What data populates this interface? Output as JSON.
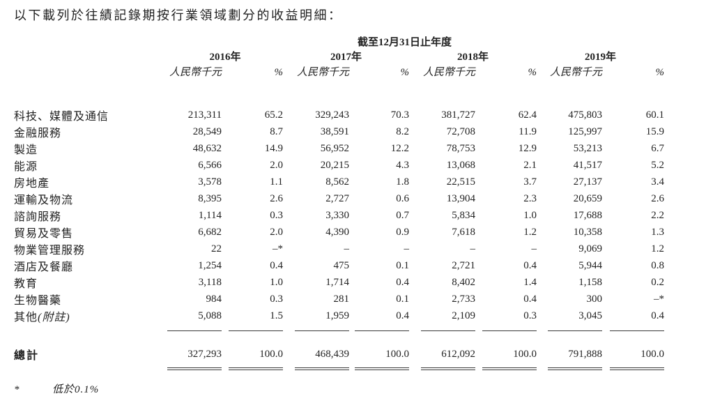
{
  "title": "以下載列於往績記錄期按行業領域劃分的收益明細：",
  "table": {
    "period_header": "截至12月31日止年度",
    "years": [
      "2016年",
      "2017年",
      "2018年",
      "2019年"
    ],
    "amount_header": "人民幣千元",
    "percent_header": "%",
    "rows": [
      {
        "label": "科技、媒體及通信",
        "values": [
          "213,311",
          "65.2",
          "329,243",
          "70.3",
          "381,727",
          "62.4",
          "475,803",
          "60.1"
        ]
      },
      {
        "label": "金融服務",
        "values": [
          "28,549",
          "8.7",
          "38,591",
          "8.2",
          "72,708",
          "11.9",
          "125,997",
          "15.9"
        ]
      },
      {
        "label": "製造",
        "values": [
          "48,632",
          "14.9",
          "56,952",
          "12.2",
          "78,753",
          "12.9",
          "53,213",
          "6.7"
        ]
      },
      {
        "label": "能源",
        "values": [
          "6,566",
          "2.0",
          "20,215",
          "4.3",
          "13,068",
          "2.1",
          "41,517",
          "5.2"
        ]
      },
      {
        "label": "房地產",
        "values": [
          "3,578",
          "1.1",
          "8,562",
          "1.8",
          "22,515",
          "3.7",
          "27,137",
          "3.4"
        ]
      },
      {
        "label": "運輸及物流",
        "values": [
          "8,395",
          "2.6",
          "2,727",
          "0.6",
          "13,904",
          "2.3",
          "20,659",
          "2.6"
        ]
      },
      {
        "label": "諮詢服務",
        "values": [
          "1,114",
          "0.3",
          "3,330",
          "0.7",
          "5,834",
          "1.0",
          "17,688",
          "2.2"
        ]
      },
      {
        "label": "貿易及零售",
        "values": [
          "6,682",
          "2.0",
          "4,390",
          "0.9",
          "7,618",
          "1.2",
          "10,358",
          "1.3"
        ]
      },
      {
        "label": "物業管理服務",
        "values": [
          "22",
          "–*",
          "–",
          "–",
          "–",
          "–",
          "9,069",
          "1.2"
        ]
      },
      {
        "label": "酒店及餐廳",
        "values": [
          "1,254",
          "0.4",
          "475",
          "0.1",
          "2,721",
          "0.4",
          "5,944",
          "0.8"
        ]
      },
      {
        "label": "教育",
        "values": [
          "3,118",
          "1.0",
          "1,714",
          "0.4",
          "8,402",
          "1.4",
          "1,158",
          "0.2"
        ]
      },
      {
        "label": "生物醫藥",
        "values": [
          "984",
          "0.3",
          "281",
          "0.1",
          "2,733",
          "0.4",
          "300",
          "–*"
        ]
      },
      {
        "label": "其他",
        "note": "(附註)",
        "values": [
          "5,088",
          "1.5",
          "1,959",
          "0.4",
          "2,109",
          "0.3",
          "3,045",
          "0.4"
        ]
      }
    ],
    "total": {
      "label": "總計",
      "values": [
        "327,293",
        "100.0",
        "468,439",
        "100.0",
        "612,092",
        "100.0",
        "791,888",
        "100.0"
      ]
    }
  },
  "footnote": {
    "marker": "*",
    "text": "低於0.1%"
  }
}
